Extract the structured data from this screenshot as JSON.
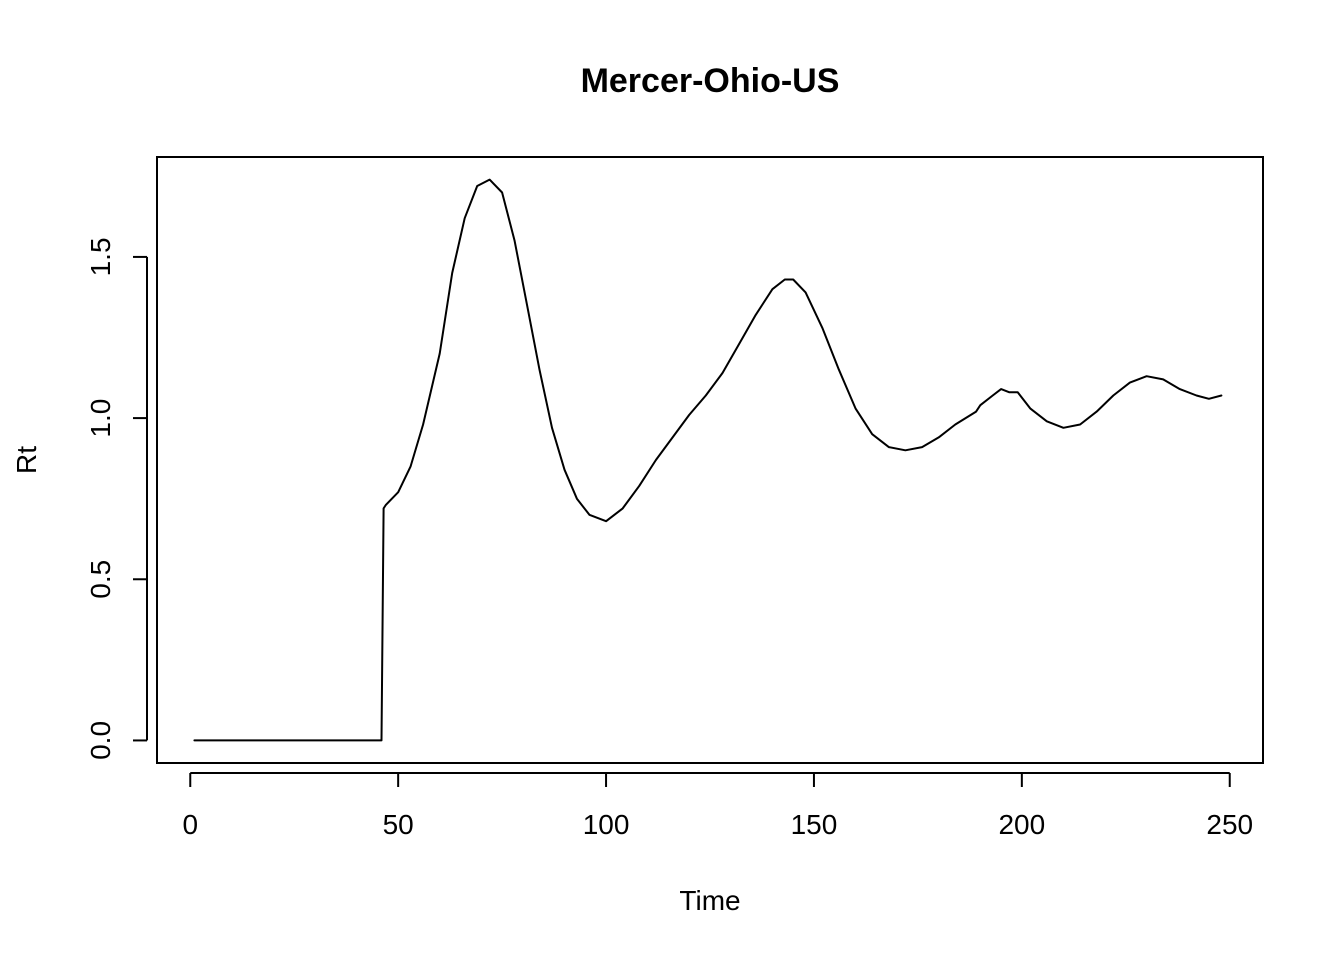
{
  "chart_data": {
    "type": "line",
    "title": "Mercer-Ohio-US",
    "xlabel": "Time",
    "ylabel": "Rt",
    "xlim": [
      -8,
      258
    ],
    "ylim": [
      -0.07,
      1.81
    ],
    "x_ticks": [
      0,
      50,
      100,
      150,
      200,
      250
    ],
    "x_tick_labels": [
      "0",
      "50",
      "100",
      "150",
      "200",
      "250"
    ],
    "y_ticks": [
      0.0,
      0.5,
      1.0,
      1.5
    ],
    "y_tick_labels": [
      "0.0",
      "0.5",
      "1.0",
      "1.5"
    ],
    "grid": false,
    "legend": "none",
    "series": [
      {
        "x": [
          1,
          46,
          46.5,
          47,
          50,
          53,
          56,
          60,
          63,
          66,
          69,
          72,
          75,
          78,
          81,
          84,
          87,
          90,
          93,
          96,
          100,
          104,
          108,
          112,
          116,
          120,
          124,
          128,
          132,
          136,
          140,
          143,
          145,
          148,
          152,
          156,
          160,
          164,
          168,
          172,
          176,
          180,
          184,
          189,
          190,
          193,
          195,
          197,
          199,
          202,
          206,
          210,
          214,
          218,
          222,
          226,
          230,
          234,
          238,
          242,
          245,
          248
        ],
        "y": [
          0.0,
          0.0,
          0.72,
          0.73,
          0.77,
          0.85,
          0.98,
          1.2,
          1.45,
          1.62,
          1.72,
          1.74,
          1.7,
          1.55,
          1.35,
          1.15,
          0.97,
          0.84,
          0.75,
          0.7,
          0.68,
          0.72,
          0.79,
          0.87,
          0.94,
          1.01,
          1.07,
          1.14,
          1.23,
          1.32,
          1.4,
          1.43,
          1.43,
          1.39,
          1.28,
          1.15,
          1.03,
          0.95,
          0.91,
          0.9,
          0.91,
          0.94,
          0.98,
          1.02,
          1.04,
          1.07,
          1.09,
          1.08,
          1.08,
          1.03,
          0.99,
          0.97,
          0.98,
          1.02,
          1.07,
          1.11,
          1.13,
          1.12,
          1.09,
          1.07,
          1.06,
          1.07
        ]
      }
    ]
  }
}
